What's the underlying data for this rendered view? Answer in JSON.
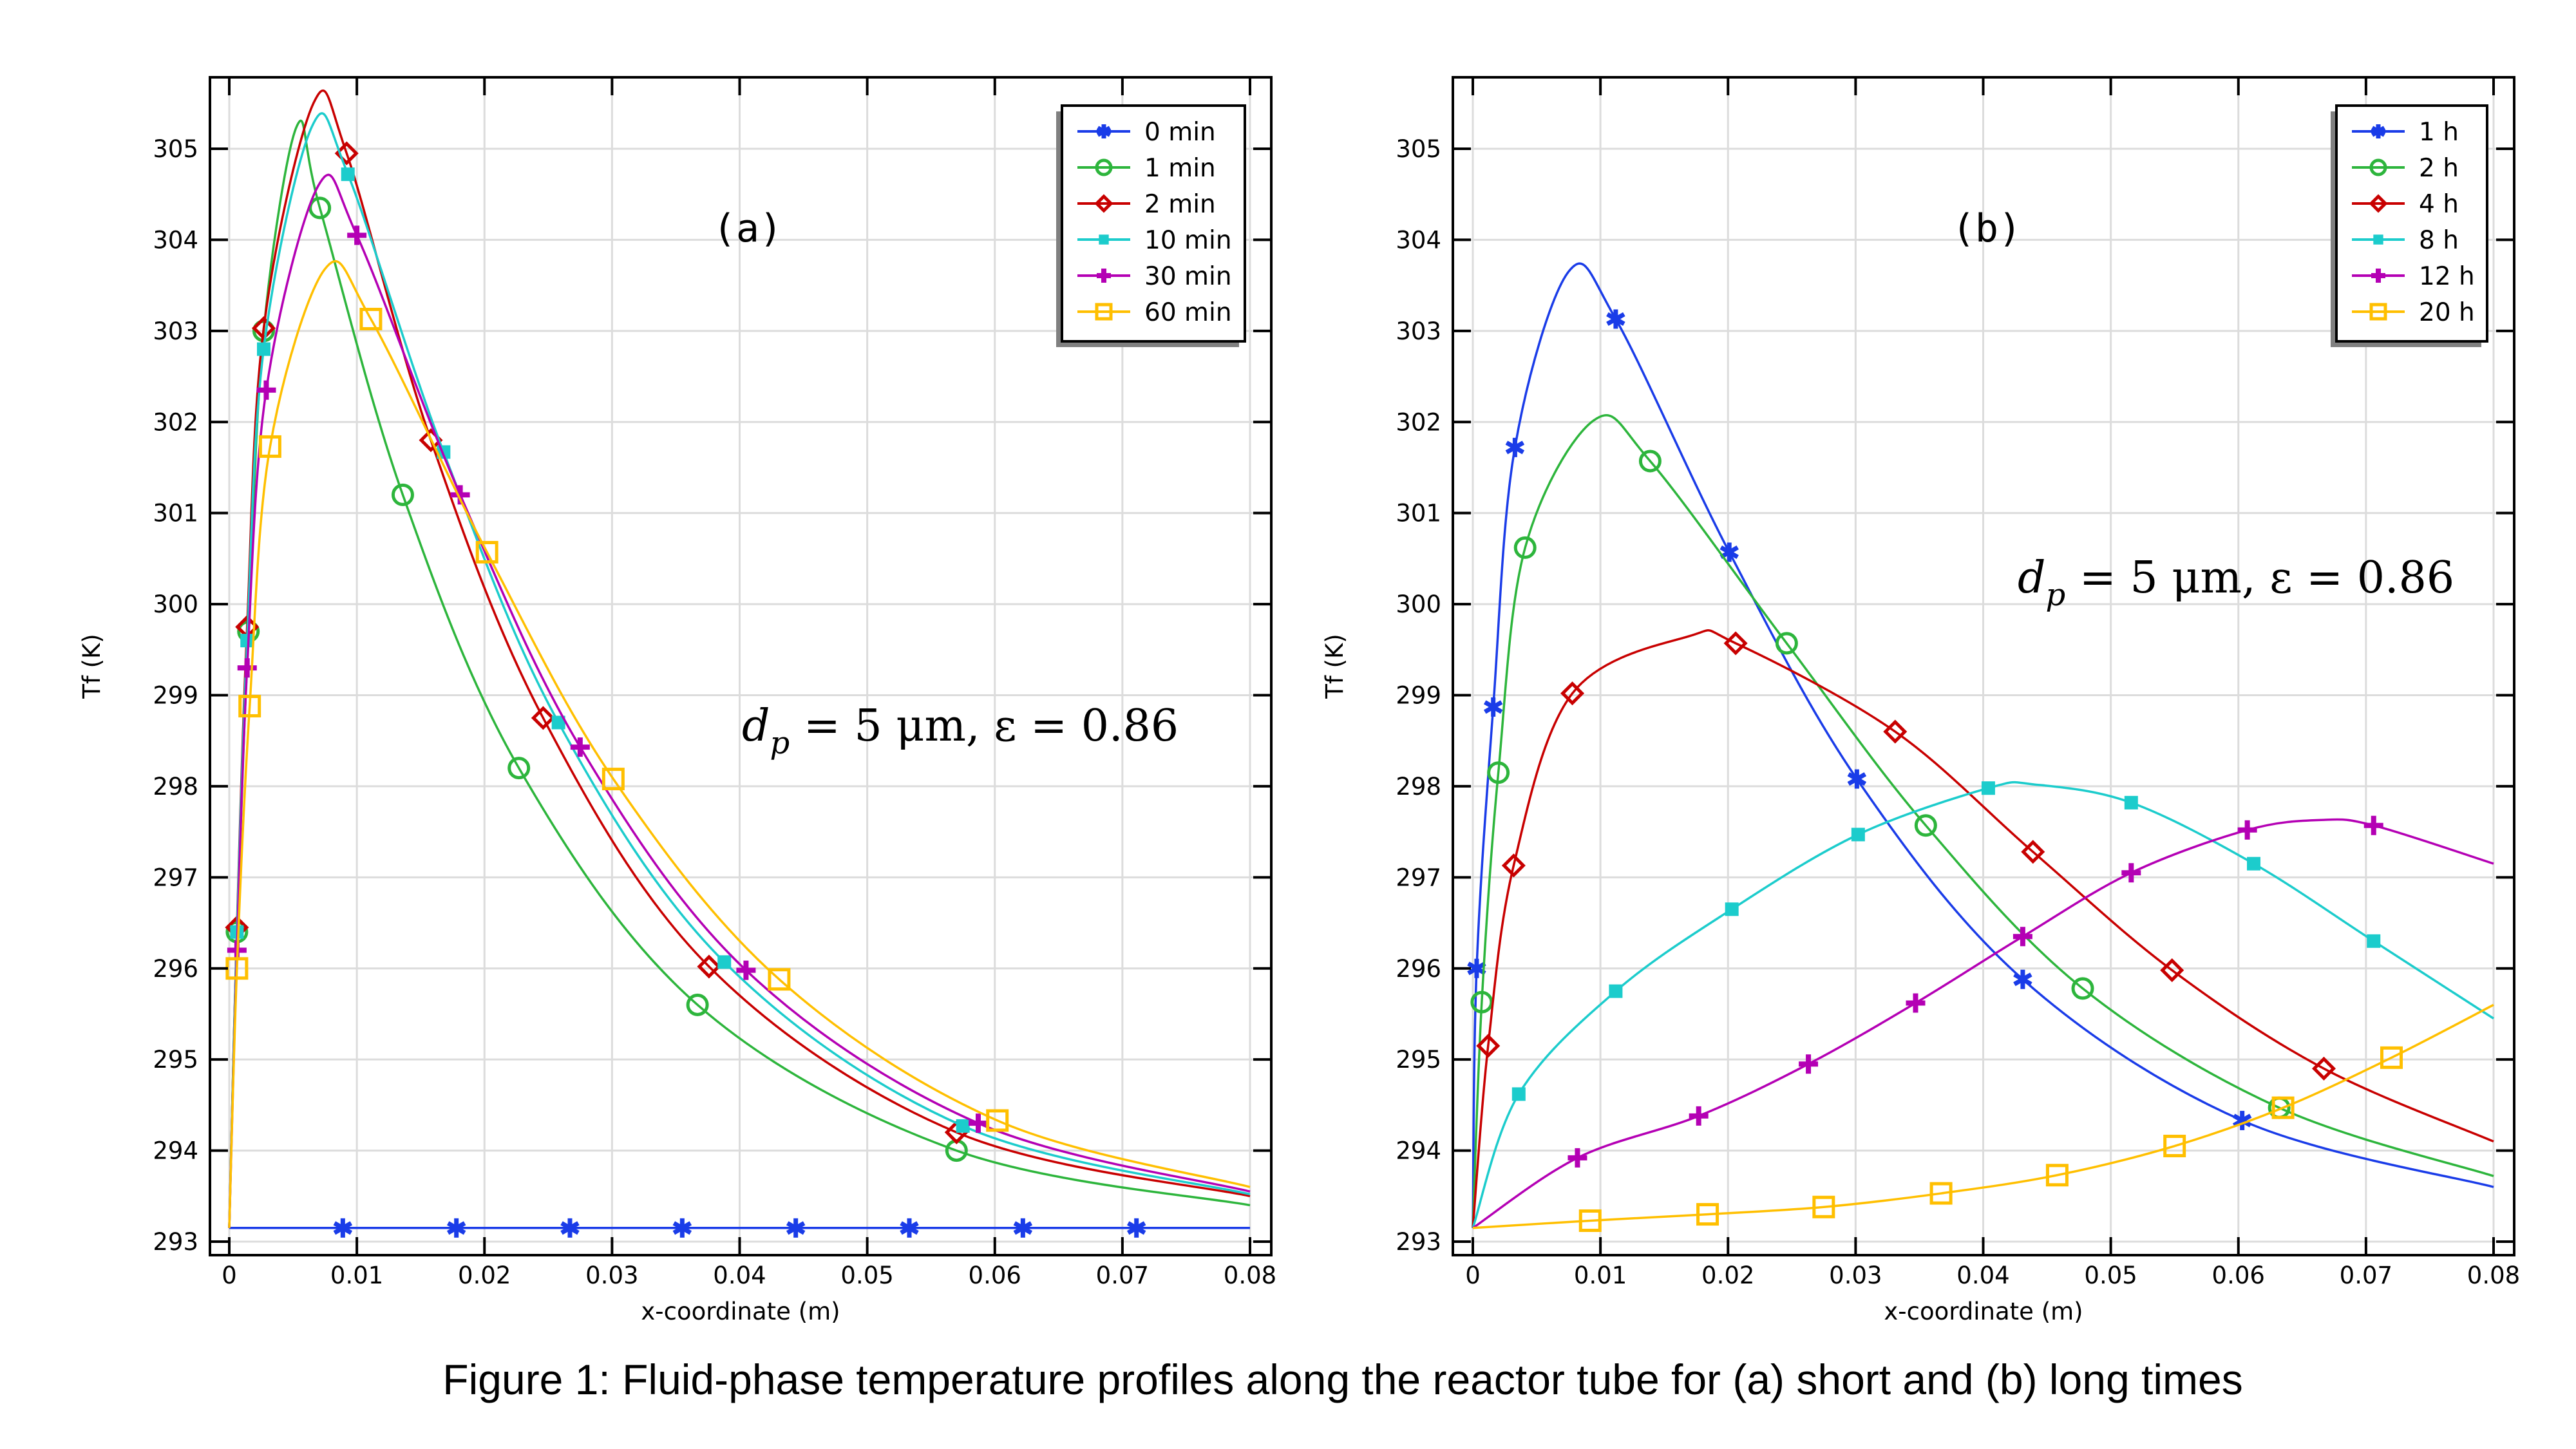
{
  "caption": "Figure 1: Fluid-phase temperature profiles along the reactor tube for (a) short and (b) long times",
  "chart_data": [
    {
      "type": "line",
      "panel_label": "(a)",
      "annotation": {
        "dp_symbol": "d",
        "dp_sub": "p",
        "text": " = 5 μm, ε = 0.86"
      },
      "xlabel": "x-coordinate (m)",
      "ylabel": "Tf (K)",
      "xlim": [
        -0.0015,
        0.0817
      ],
      "ylim": [
        292.85,
        305.8
      ],
      "xticks": [
        0,
        0.01,
        0.02,
        0.03,
        0.04,
        0.05,
        0.06,
        0.07,
        0.08
      ],
      "xtick_labels": [
        "0",
        "0.01",
        "0.02",
        "0.03",
        "0.04",
        "0.05",
        "0.06",
        "0.07",
        "0.08"
      ],
      "yticks": [
        293,
        294,
        295,
        296,
        297,
        298,
        299,
        300,
        301,
        302,
        303,
        304,
        305
      ],
      "grid": true,
      "legend_position": "top-right",
      "series": [
        {
          "name": "0 min",
          "color": "#1a3ce8",
          "marker": "asterisk",
          "curve": [
            [
              0,
              293.15
            ],
            [
              0.08,
              293.15
            ]
          ],
          "markers": [
            [
              0.0089,
              293.15
            ],
            [
              0.0178,
              293.15
            ],
            [
              0.0267,
              293.15
            ],
            [
              0.0355,
              293.15
            ],
            [
              0.0444,
              293.15
            ],
            [
              0.0533,
              293.15
            ],
            [
              0.0622,
              293.15
            ],
            [
              0.0711,
              293.15
            ]
          ]
        },
        {
          "name": "1 min",
          "color": "#2db53c",
          "marker": "circle",
          "curve": [
            [
              0,
              293.15
            ],
            [
              0.0006,
              296.4
            ],
            [
              0.0015,
              299.7
            ],
            [
              0.0027,
              303.0
            ],
            [
              0.0053,
              305.25
            ],
            [
              0.0071,
              304.35
            ],
            [
              0.0136,
              301.2
            ],
            [
              0.0227,
              298.2
            ],
            [
              0.0367,
              295.6
            ],
            [
              0.057,
              294.0
            ],
            [
              0.08,
              293.4
            ]
          ],
          "markers": [
            [
              0.0006,
              296.4
            ],
            [
              0.0015,
              299.7
            ],
            [
              0.0027,
              303.0
            ],
            [
              0.0071,
              304.35
            ],
            [
              0.0136,
              301.2
            ],
            [
              0.0227,
              298.2
            ],
            [
              0.0367,
              295.6
            ],
            [
              0.057,
              294.0
            ]
          ]
        },
        {
          "name": "2 min",
          "color": "#c80000",
          "marker": "diamond",
          "curve": [
            [
              0,
              293.15
            ],
            [
              0.0006,
              296.45
            ],
            [
              0.0014,
              299.75
            ],
            [
              0.0027,
              303.03
            ],
            [
              0.0066,
              305.5
            ],
            [
              0.0092,
              304.95
            ],
            [
              0.0158,
              301.8
            ],
            [
              0.0246,
              298.75
            ],
            [
              0.0376,
              296.02
            ],
            [
              0.057,
              294.2
            ],
            [
              0.08,
              293.5
            ]
          ],
          "markers": [
            [
              0.0006,
              296.45
            ],
            [
              0.0014,
              299.75
            ],
            [
              0.0027,
              303.03
            ],
            [
              0.0092,
              304.95
            ],
            [
              0.0158,
              301.8
            ],
            [
              0.0246,
              298.75
            ],
            [
              0.0376,
              296.02
            ],
            [
              0.057,
              294.2
            ]
          ]
        },
        {
          "name": "10 min",
          "color": "#1ccccc",
          "marker": "filled-square",
          "curve": [
            [
              0,
              293.15
            ],
            [
              0.0006,
              296.4
            ],
            [
              0.0014,
              299.6
            ],
            [
              0.0027,
              302.8
            ],
            [
              0.0065,
              305.25
            ],
            [
              0.0093,
              304.72
            ],
            [
              0.0168,
              301.67
            ],
            [
              0.0258,
              298.7
            ],
            [
              0.0388,
              296.07
            ],
            [
              0.0575,
              294.27
            ],
            [
              0.08,
              293.52
            ]
          ],
          "markers": [
            [
              0.0006,
              296.4
            ],
            [
              0.0014,
              299.6
            ],
            [
              0.0027,
              302.8
            ],
            [
              0.0093,
              304.72
            ],
            [
              0.0168,
              301.67
            ],
            [
              0.0258,
              298.7
            ],
            [
              0.0388,
              296.07
            ],
            [
              0.0575,
              294.27
            ]
          ]
        },
        {
          "name": "30 min",
          "color": "#b400b4",
          "marker": "plus",
          "curve": [
            [
              0,
              293.15
            ],
            [
              0.0006,
              296.2
            ],
            [
              0.0014,
              299.3
            ],
            [
              0.0029,
              302.35
            ],
            [
              0.007,
              304.6
            ],
            [
              0.01,
              304.05
            ],
            [
              0.0181,
              301.2
            ],
            [
              0.0275,
              298.43
            ],
            [
              0.0405,
              295.98
            ],
            [
              0.0587,
              294.3
            ],
            [
              0.08,
              293.55
            ]
          ],
          "markers": [
            [
              0.0006,
              296.2
            ],
            [
              0.0014,
              299.3
            ],
            [
              0.0029,
              302.35
            ],
            [
              0.01,
              304.05
            ],
            [
              0.0181,
              301.2
            ],
            [
              0.0275,
              298.43
            ],
            [
              0.0405,
              295.98
            ],
            [
              0.0587,
              294.3
            ]
          ]
        },
        {
          "name": "60 min",
          "color": "#ffbf00",
          "marker": "open-square",
          "curve": [
            [
              0,
              293.15
            ],
            [
              0.0006,
              296.0
            ],
            [
              0.0016,
              298.88
            ],
            [
              0.0032,
              301.73
            ],
            [
              0.0075,
              303.68
            ],
            [
              0.0111,
              303.13
            ],
            [
              0.0202,
              300.57
            ],
            [
              0.0301,
              298.08
            ],
            [
              0.0431,
              295.88
            ],
            [
              0.0602,
              294.33
            ],
            [
              0.08,
              293.6
            ]
          ],
          "markers": [
            [
              0.0006,
              296.0
            ],
            [
              0.0016,
              298.88
            ],
            [
              0.0032,
              301.73
            ],
            [
              0.0111,
              303.13
            ],
            [
              0.0202,
              300.57
            ],
            [
              0.0301,
              298.08
            ],
            [
              0.0431,
              295.88
            ],
            [
              0.0602,
              294.33
            ]
          ]
        }
      ]
    },
    {
      "type": "line",
      "panel_label": "(b)",
      "annotation": {
        "dp_symbol": "d",
        "dp_sub": "p",
        "text": " = 5 μm, ε = 0.86"
      },
      "xlabel": "x-coordinate (m)",
      "ylabel": "Tf (K)",
      "xlim": [
        -0.0015,
        0.0817
      ],
      "ylim": [
        292.85,
        305.8
      ],
      "xticks": [
        0,
        0.01,
        0.02,
        0.03,
        0.04,
        0.05,
        0.06,
        0.07,
        0.08
      ],
      "xtick_labels": [
        "0",
        "0.01",
        "0.02",
        "0.03",
        "0.04",
        "0.05",
        "0.06",
        "0.07",
        "0.08"
      ],
      "yticks": [
        293,
        294,
        295,
        296,
        297,
        298,
        299,
        300,
        301,
        302,
        303,
        304,
        305
      ],
      "grid": true,
      "legend_position": "top-right",
      "series": [
        {
          "name": "1 h",
          "color": "#1a3ce8",
          "marker": "asterisk",
          "curve": [
            [
              0,
              293.15
            ],
            [
              0.0003,
              296.0
            ],
            [
              0.0016,
              298.87
            ],
            [
              0.0033,
              301.72
            ],
            [
              0.0075,
              303.65
            ],
            [
              0.0112,
              303.13
            ],
            [
              0.0201,
              300.57
            ],
            [
              0.0301,
              298.08
            ],
            [
              0.0431,
              295.88
            ],
            [
              0.0603,
              294.33
            ],
            [
              0.08,
              293.6
            ]
          ],
          "markers": [
            [
              0.0003,
              296.0
            ],
            [
              0.0016,
              298.87
            ],
            [
              0.0033,
              301.72
            ],
            [
              0.0112,
              303.13
            ],
            [
              0.0201,
              300.57
            ],
            [
              0.0301,
              298.08
            ],
            [
              0.0431,
              295.88
            ],
            [
              0.0603,
              294.33
            ]
          ]
        },
        {
          "name": "2 h",
          "color": "#2db53c",
          "marker": "circle",
          "curve": [
            [
              0,
              293.15
            ],
            [
              0.0007,
              295.63
            ],
            [
              0.002,
              298.15
            ],
            [
              0.0041,
              300.62
            ],
            [
              0.0095,
              302.02
            ],
            [
              0.0139,
              301.57
            ],
            [
              0.0246,
              299.57
            ],
            [
              0.0355,
              297.57
            ],
            [
              0.0478,
              295.78
            ],
            [
              0.0632,
              294.47
            ],
            [
              0.08,
              293.72
            ]
          ],
          "markers": [
            [
              0.0007,
              295.63
            ],
            [
              0.002,
              298.15
            ],
            [
              0.0041,
              300.62
            ],
            [
              0.0139,
              301.57
            ],
            [
              0.0246,
              299.57
            ],
            [
              0.0355,
              297.57
            ],
            [
              0.0478,
              295.78
            ],
            [
              0.0632,
              294.47
            ]
          ]
        },
        {
          "name": "4 h",
          "color": "#c80000",
          "marker": "diamond",
          "curve": [
            [
              0,
              293.15
            ],
            [
              0.0012,
              295.15
            ],
            [
              0.0032,
              297.13
            ],
            [
              0.0078,
              299.02
            ],
            [
              0.017,
              299.65
            ],
            [
              0.0206,
              299.57
            ],
            [
              0.0331,
              298.6
            ],
            [
              0.0439,
              297.28
            ],
            [
              0.0548,
              295.98
            ],
            [
              0.0667,
              294.9
            ],
            [
              0.08,
              294.1
            ]
          ],
          "markers": [
            [
              0.0012,
              295.15
            ],
            [
              0.0032,
              297.13
            ],
            [
              0.0078,
              299.02
            ],
            [
              0.0206,
              299.57
            ],
            [
              0.0331,
              298.6
            ],
            [
              0.0439,
              297.28
            ],
            [
              0.0548,
              295.98
            ],
            [
              0.0667,
              294.9
            ]
          ]
        },
        {
          "name": "8 h",
          "color": "#1ccccc",
          "marker": "filled-square",
          "curve": [
            [
              0,
              293.15
            ],
            [
              0.0036,
              294.62
            ],
            [
              0.0112,
              295.75
            ],
            [
              0.0203,
              296.65
            ],
            [
              0.0302,
              297.47
            ],
            [
              0.0404,
              297.98
            ],
            [
              0.044,
              298.02
            ],
            [
              0.0516,
              297.82
            ],
            [
              0.0612,
              297.15
            ],
            [
              0.0706,
              296.3
            ],
            [
              0.08,
              295.45
            ]
          ],
          "markers": [
            [
              0.0036,
              294.62
            ],
            [
              0.0112,
              295.75
            ],
            [
              0.0203,
              296.65
            ],
            [
              0.0302,
              297.47
            ],
            [
              0.0404,
              297.98
            ],
            [
              0.0516,
              297.82
            ],
            [
              0.0612,
              297.15
            ],
            [
              0.0706,
              296.3
            ]
          ]
        },
        {
          "name": "12 h",
          "color": "#b400b4",
          "marker": "plus",
          "curve": [
            [
              0,
              293.15
            ],
            [
              0.0082,
              293.92
            ],
            [
              0.0177,
              294.38
            ],
            [
              0.0263,
              294.95
            ],
            [
              0.0347,
              295.62
            ],
            [
              0.0431,
              296.35
            ],
            [
              0.0516,
              297.05
            ],
            [
              0.0607,
              297.52
            ],
            [
              0.0665,
              297.63
            ],
            [
              0.0706,
              297.57
            ],
            [
              0.08,
              297.15
            ]
          ],
          "markers": [
            [
              0.0082,
              293.92
            ],
            [
              0.0177,
              294.38
            ],
            [
              0.0263,
              294.95
            ],
            [
              0.0347,
              295.62
            ],
            [
              0.0431,
              296.35
            ],
            [
              0.0516,
              297.05
            ],
            [
              0.0607,
              297.52
            ],
            [
              0.0706,
              297.57
            ]
          ]
        },
        {
          "name": "20 h",
          "color": "#ffbf00",
          "marker": "open-square",
          "curve": [
            [
              0,
              293.15
            ],
            [
              0.0092,
              293.23
            ],
            [
              0.0184,
              293.3
            ],
            [
              0.0275,
              293.38
            ],
            [
              0.0367,
              293.53
            ],
            [
              0.0458,
              293.73
            ],
            [
              0.055,
              294.05
            ],
            [
              0.0635,
              294.47
            ],
            [
              0.072,
              295.02
            ],
            [
              0.08,
              295.6
            ]
          ],
          "markers": [
            [
              0.0092,
              293.23
            ],
            [
              0.0184,
              293.3
            ],
            [
              0.0275,
              293.38
            ],
            [
              0.0367,
              293.53
            ],
            [
              0.0458,
              293.73
            ],
            [
              0.055,
              294.05
            ],
            [
              0.0635,
              294.47
            ],
            [
              0.072,
              295.02
            ]
          ]
        }
      ]
    }
  ]
}
